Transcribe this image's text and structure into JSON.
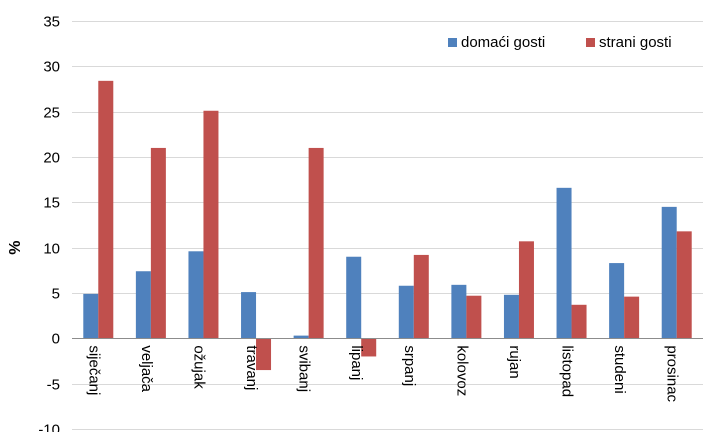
{
  "chart_data": {
    "type": "bar",
    "title": "",
    "xlabel": "",
    "ylabel": "%",
    "ylim": [
      -10,
      35
    ],
    "yticks": [
      -10,
      -5,
      0,
      5,
      10,
      15,
      20,
      25,
      30,
      35
    ],
    "grid": true,
    "legend_position": "top-right",
    "categories": [
      "siječanj",
      "veljača",
      "ožujak",
      "travanj",
      "svibanj",
      "lipanj",
      "srpanj",
      "kolovoz",
      "rujan",
      "listopad",
      "studeni",
      "prosinac"
    ],
    "series": [
      {
        "name": "domaći gosti",
        "color": "#4F81BD",
        "values": [
          4.9,
          7.4,
          9.6,
          5.1,
          0.3,
          9.0,
          5.8,
          5.9,
          4.8,
          16.6,
          8.3,
          14.5
        ]
      },
      {
        "name": "strani gosti",
        "color": "#C0504D",
        "values": [
          28.4,
          21.0,
          25.1,
          -3.5,
          21.0,
          -2.0,
          9.2,
          4.7,
          10.7,
          3.7,
          4.6,
          11.8
        ]
      }
    ]
  }
}
